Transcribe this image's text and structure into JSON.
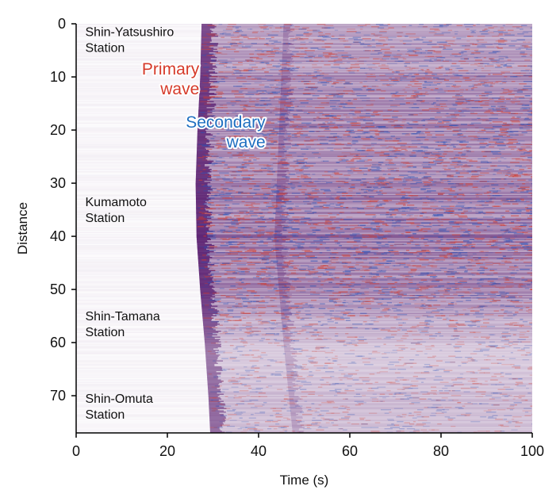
{
  "chart_data": {
    "type": "heatmap",
    "description_kind": "seismic waveform record (distributed acoustic sensing)",
    "xlabel": "Time (s)",
    "ylabel": "Distance",
    "xlim": [
      0,
      100
    ],
    "ylim": [
      0,
      77
    ],
    "y_inverted": true,
    "xticks": [
      0,
      20,
      40,
      60,
      80,
      100
    ],
    "yticks": [
      0,
      10,
      20,
      30,
      40,
      50,
      60,
      70
    ],
    "colors": {
      "positive": "#d63a2a",
      "negative": "#2a4fb5",
      "mixed": "#5a1f70",
      "background": "#ffffff"
    },
    "wave_onset": [
      {
        "distance": 0,
        "time": 27.5
      },
      {
        "distance": 10,
        "time": 27.2
      },
      {
        "distance": 20,
        "time": 26.6
      },
      {
        "distance": 30,
        "time": 26.2
      },
      {
        "distance": 40,
        "time": 26.4
      },
      {
        "distance": 50,
        "time": 27.2
      },
      {
        "distance": 60,
        "time": 28.2
      },
      {
        "distance": 70,
        "time": 29.0
      },
      {
        "distance": 77,
        "time": 29.4
      }
    ],
    "secondary_band": [
      {
        "distance": 0,
        "time": 46
      },
      {
        "distance": 20,
        "time": 45
      },
      {
        "distance": 40,
        "time": 44
      },
      {
        "distance": 60,
        "time": 46
      },
      {
        "distance": 77,
        "time": 48
      }
    ],
    "intensity_profile": [
      {
        "distance": 0,
        "level": 0.55
      },
      {
        "distance": 10,
        "level": 0.75
      },
      {
        "distance": 20,
        "level": 0.8
      },
      {
        "distance": 30,
        "level": 0.85
      },
      {
        "distance": 40,
        "level": 0.95
      },
      {
        "distance": 50,
        "level": 0.8
      },
      {
        "distance": 56,
        "level": 0.55
      },
      {
        "distance": 62,
        "level": 0.2
      },
      {
        "distance": 70,
        "level": 0.35
      },
      {
        "distance": 77,
        "level": 0.3
      }
    ],
    "annotations": {
      "stations": [
        {
          "line1": "Shin-Yatsushiro",
          "line2": "Station",
          "distance": 3.5,
          "time": 2
        },
        {
          "line1": "Kumamoto",
          "line2": "Station",
          "distance": 35.5,
          "time": 2
        },
        {
          "line1": "Shin-Tamana",
          "line2": "Station",
          "distance": 57,
          "time": 2
        },
        {
          "line1": "Shin-Omuta",
          "line2": "Station",
          "distance": 72.5,
          "time": 2
        }
      ],
      "primary": {
        "line1": "Primary",
        "line2": "wave",
        "color": "#d63a2a",
        "distance": 10,
        "time": 27
      },
      "secondary": {
        "line1": "Secondary",
        "line2": "wave",
        "color": "#1f6fc0",
        "distance": 20,
        "time": 41.5
      }
    }
  }
}
